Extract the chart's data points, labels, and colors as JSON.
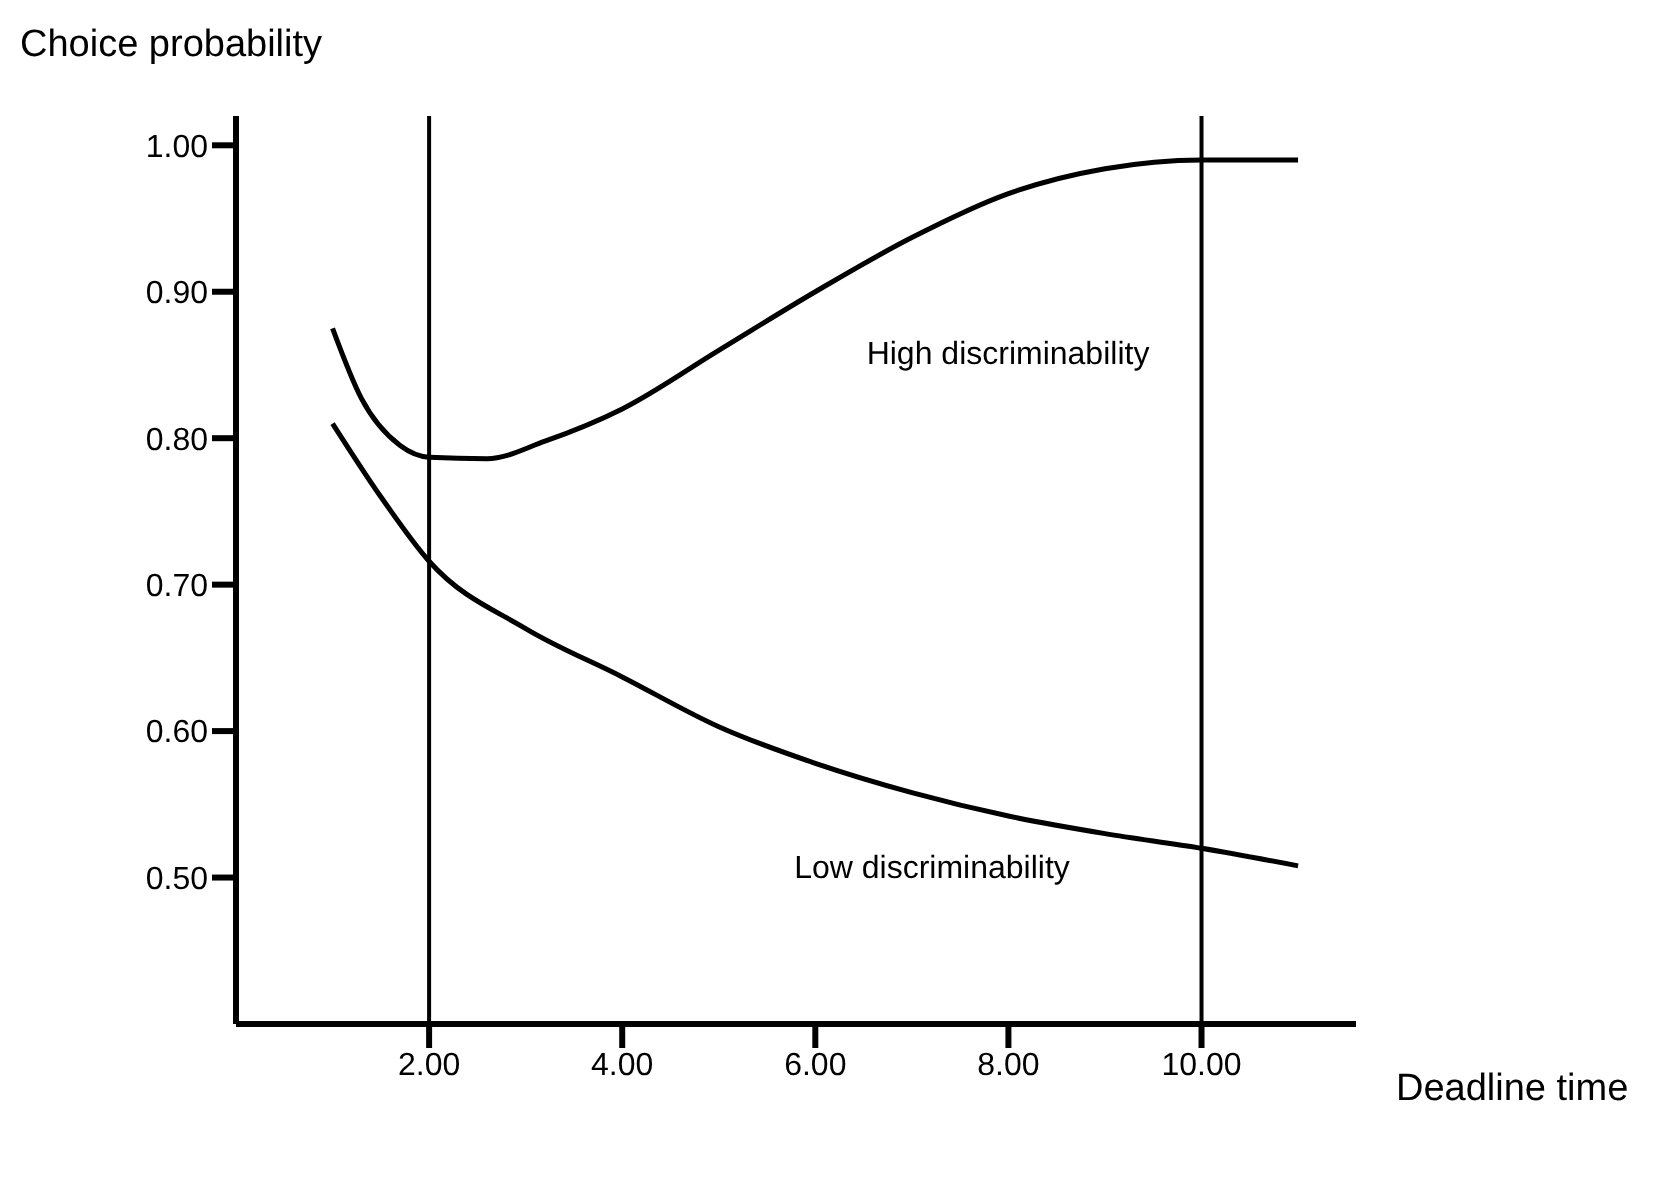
{
  "chart_data": {
    "type": "line",
    "xlabel": "Deadline time",
    "ylabel": "Choice probability",
    "xlim": [
      0,
      11.6
    ],
    "ylim": [
      0.4,
      1.02
    ],
    "xticks": [
      {
        "value": 2,
        "label": "2.00"
      },
      {
        "value": 4,
        "label": "4.00"
      },
      {
        "value": 6,
        "label": "6.00"
      },
      {
        "value": 8,
        "label": "8.00"
      },
      {
        "value": 10,
        "label": "10.00"
      }
    ],
    "yticks": [
      {
        "value": 0.5,
        "label": "0.50"
      },
      {
        "value": 0.6,
        "label": "0.60"
      },
      {
        "value": 0.7,
        "label": "0.70"
      },
      {
        "value": 0.8,
        "label": "0.80"
      },
      {
        "value": 0.9,
        "label": "0.90"
      },
      {
        "value": 1,
        "label": "1.00"
      }
    ],
    "series": [
      {
        "color": "#000000",
        "x": [
          1.0,
          1.3,
          1.7,
          2.0,
          2.6,
          3.2,
          4.0,
          5.0,
          6.0,
          7.0,
          8.0,
          9.0,
          10.0,
          11.0
        ],
        "values": [
          0.875,
          0.827,
          0.795,
          0.787,
          0.786,
          0.798,
          0.82,
          0.86,
          0.9,
          0.937,
          0.967,
          0.984,
          0.99,
          0.99
        ]
      },
      {
        "color": "#000000",
        "x": [
          1.0,
          1.5,
          2.0,
          3.0,
          4.0,
          5.0,
          6.0,
          7.0,
          8.0,
          9.0,
          10.0,
          11.0
        ],
        "values": [
          0.81,
          0.76,
          0.716,
          0.67,
          0.637,
          0.603,
          0.578,
          0.558,
          0.542,
          0.53,
          0.52,
          0.508
        ]
      }
    ],
    "ref_lines": [
      {
        "axis": "x",
        "value": 2,
        "color": "#000000"
      },
      {
        "axis": "x",
        "value": 10,
        "color": "#000000"
      }
    ],
    "annotations": [
      "High discriminability",
      "Low discriminability"
    ],
    "grid": false,
    "legend": false,
    "marker": "none",
    "line_style": "solid"
  }
}
